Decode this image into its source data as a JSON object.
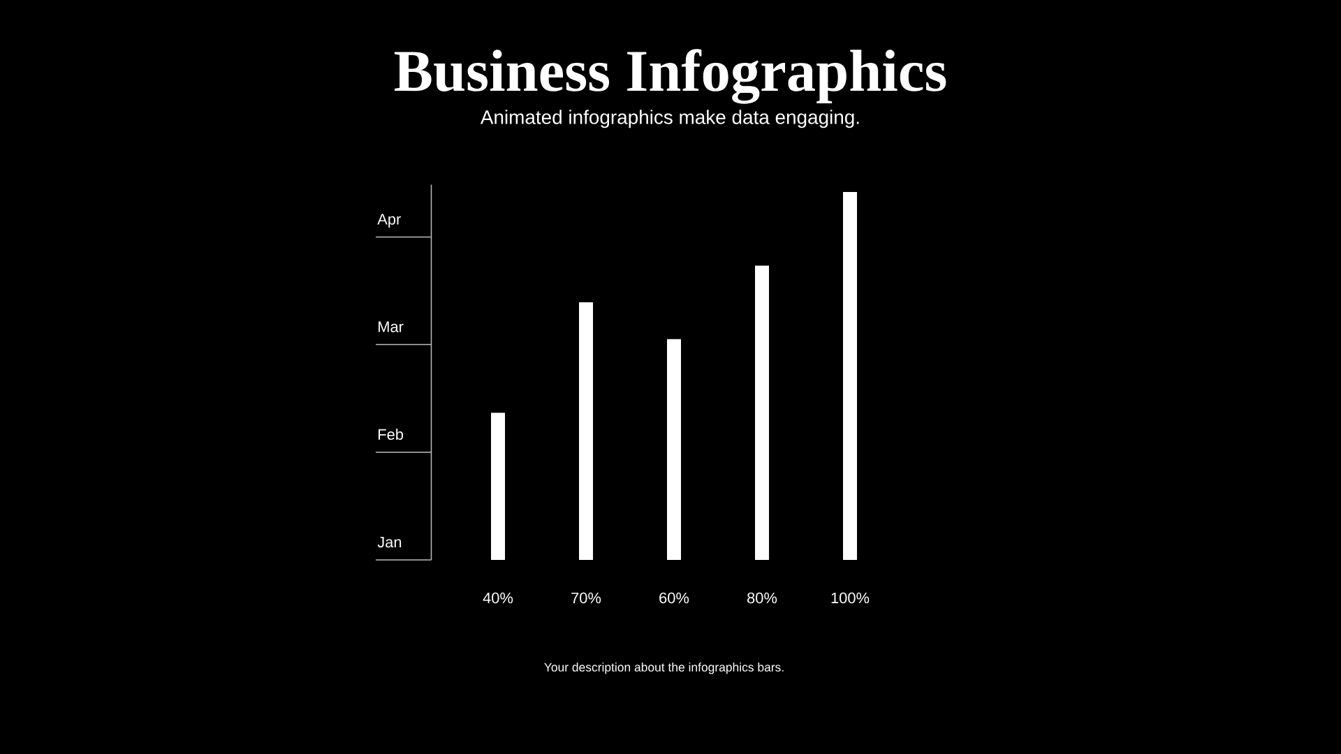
{
  "chart_data": {
    "type": "bar",
    "title": "Business Infographics",
    "subtitle": "Animated infographics make data engaging.",
    "categories": [
      null,
      null,
      null,
      null,
      null
    ],
    "values": [
      40,
      70,
      60,
      80,
      100
    ],
    "value_labels": [
      "40%",
      "70%",
      "60%",
      "80%",
      "100%"
    ],
    "color": "#ffffff",
    "annotations": [
      "Apr",
      "Mar",
      "Feb",
      "Jan",
      "Your description about the infographics bars."
    ]
  }
}
